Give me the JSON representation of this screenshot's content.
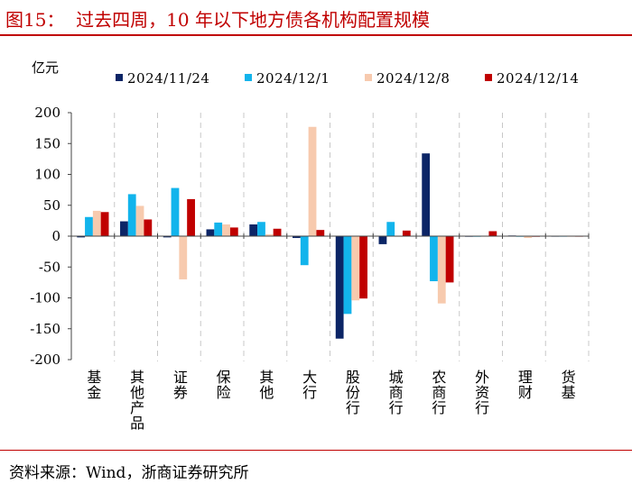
{
  "header": {
    "title": "图15：  过去四周，10 年以下地方债各机构配置规模"
  },
  "footer": {
    "source": "资料来源：Wind，浙商证券研究所"
  },
  "chart_data": {
    "type": "bar",
    "title": "过去四周，10 年以下地方债各机构配置规模",
    "ylabel": "亿元",
    "xlabel": "",
    "ylim": [
      -200,
      200
    ],
    "yticks": [
      200,
      150,
      100,
      50,
      0,
      -50,
      -100,
      -150,
      -200
    ],
    "legend_position": "top",
    "categories": [
      "基金",
      "其他产品",
      "证券",
      "保险",
      "其他",
      "大行",
      "股份行",
      "城商行",
      "农商行",
      "外资行",
      "理财",
      "货基"
    ],
    "series": [
      {
        "name": "2024/11/24",
        "color": "#0c2566",
        "values": [
          -2,
          24,
          -2,
          11,
          19,
          -3,
          -166,
          -13,
          134,
          -1,
          1,
          0
        ]
      },
      {
        "name": "2024/12/1",
        "color": "#12b4ec",
        "values": [
          31,
          68,
          78,
          22,
          23,
          -47,
          -126,
          23,
          -73,
          -1,
          -1,
          0
        ]
      },
      {
        "name": "2024/12/8",
        "color": "#f7caae",
        "values": [
          41,
          49,
          -70,
          19,
          3,
          177,
          -104,
          -1,
          -109,
          0,
          -3,
          0
        ]
      },
      {
        "name": "2024/12/14",
        "color": "#c00000",
        "values": [
          39,
          27,
          60,
          14,
          12,
          10,
          -101,
          9,
          -75,
          8,
          -1,
          0
        ]
      }
    ]
  }
}
